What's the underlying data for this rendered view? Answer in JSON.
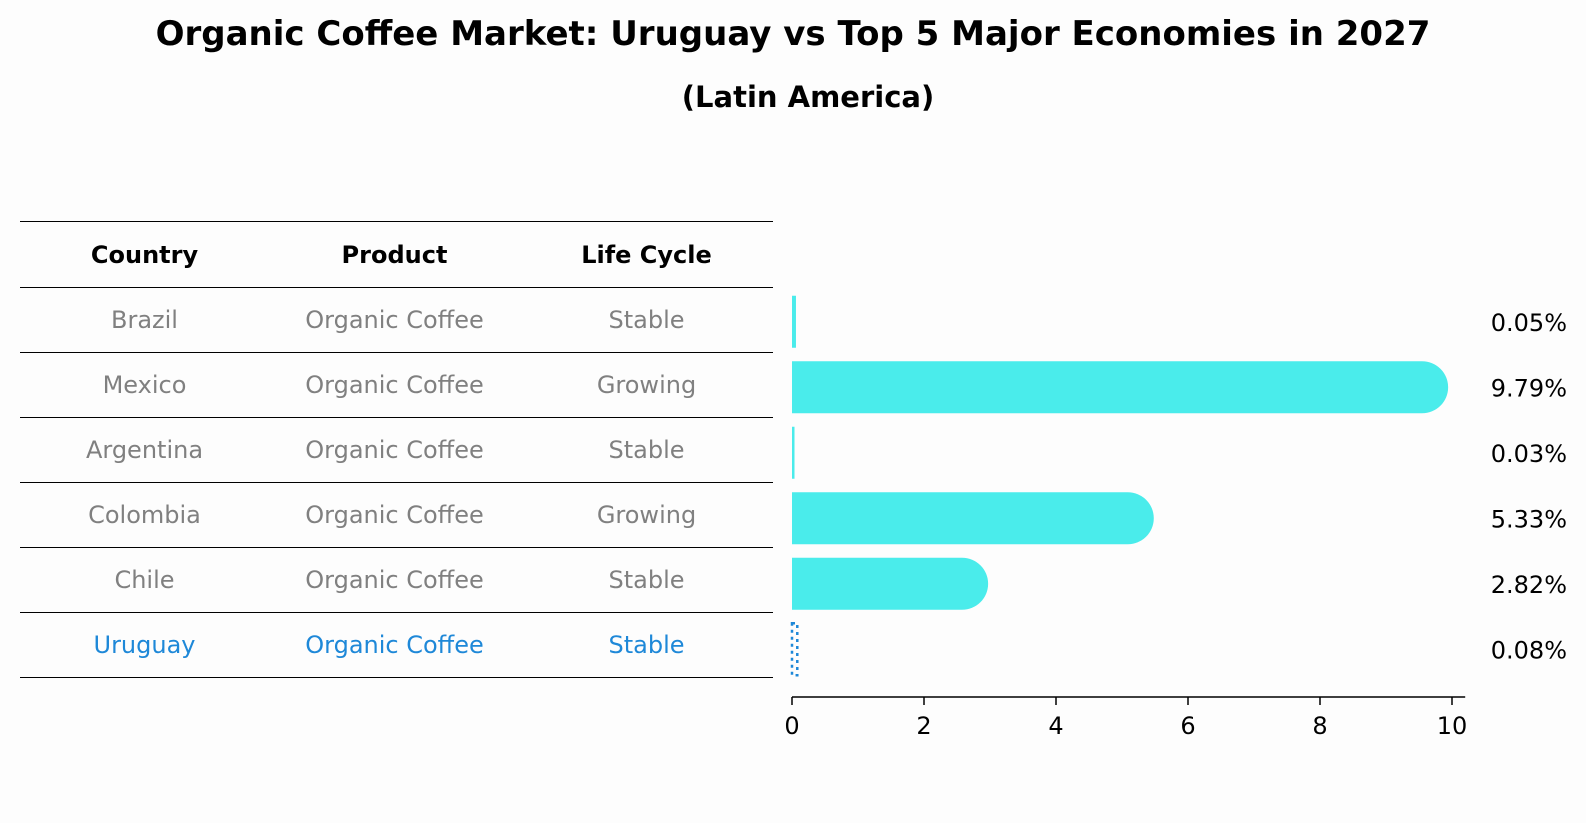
{
  "title": "Organic Coffee Market: Uruguay vs Top 5 Major Economies in 2027",
  "subtitle": "(Latin America)",
  "table": {
    "headers": [
      "Country",
      "Product",
      "Life Cycle"
    ],
    "rows": [
      [
        "Brazil",
        "Organic Coffee",
        "Stable"
      ],
      [
        "Mexico",
        "Organic Coffee",
        "Growing"
      ],
      [
        "Argentina",
        "Organic Coffee",
        "Stable"
      ],
      [
        "Colombia",
        "Organic Coffee",
        "Growing"
      ],
      [
        "Chile",
        "Organic Coffee",
        "Stable"
      ],
      [
        "Uruguay",
        "Organic Coffee",
        "Stable"
      ]
    ],
    "highlight_row": "Uruguay"
  },
  "colors": {
    "bar": "#4aeceb",
    "highlight": "#1e88d8",
    "muted_text": "#808080",
    "background": "#fdfdfd"
  },
  "chart_data": {
    "type": "bar",
    "orientation": "horizontal",
    "categories": [
      "Brazil",
      "Mexico",
      "Argentina",
      "Colombia",
      "Chile",
      "Uruguay"
    ],
    "values": [
      0.05,
      9.79,
      0.03,
      5.33,
      2.82,
      0.08
    ],
    "value_labels": [
      "0.05%",
      "9.79%",
      "0.03%",
      "5.33%",
      "2.82%",
      "0.08%"
    ],
    "xlim": [
      0,
      10.2
    ],
    "xticks": [
      "0",
      "2",
      "4",
      "6",
      "8",
      "10"
    ],
    "highlight": "Uruguay",
    "grid": false
  }
}
